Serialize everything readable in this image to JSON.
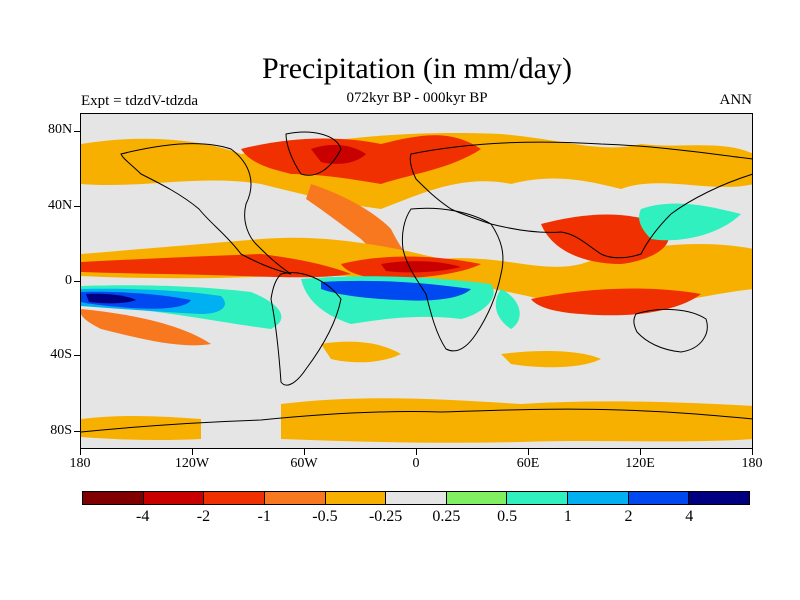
{
  "title": "Precipitation (in mm/day)",
  "subtitle": "072kyr BP - 000kyr BP",
  "experiment": "Expt = tdzdV-tdzda",
  "season": "ANN",
  "lat_labels": [
    "80N",
    "40N",
    "0",
    "40S",
    "80S"
  ],
  "lon_labels": [
    "180",
    "120W",
    "60W",
    "0",
    "60E",
    "120E",
    "180"
  ],
  "colorbar": {
    "colors": [
      "#800000",
      "#c80000",
      "#f03000",
      "#f87820",
      "#f8b000",
      "#e5e5e5",
      "#80f060",
      "#30f0c0",
      "#00b0f0",
      "#0048f0",
      "#000080"
    ],
    "labels": [
      "-4",
      "-2",
      "-1",
      "-0.5",
      "-0.25",
      "0.25",
      "0.5",
      "1",
      "2",
      "4"
    ]
  }
}
